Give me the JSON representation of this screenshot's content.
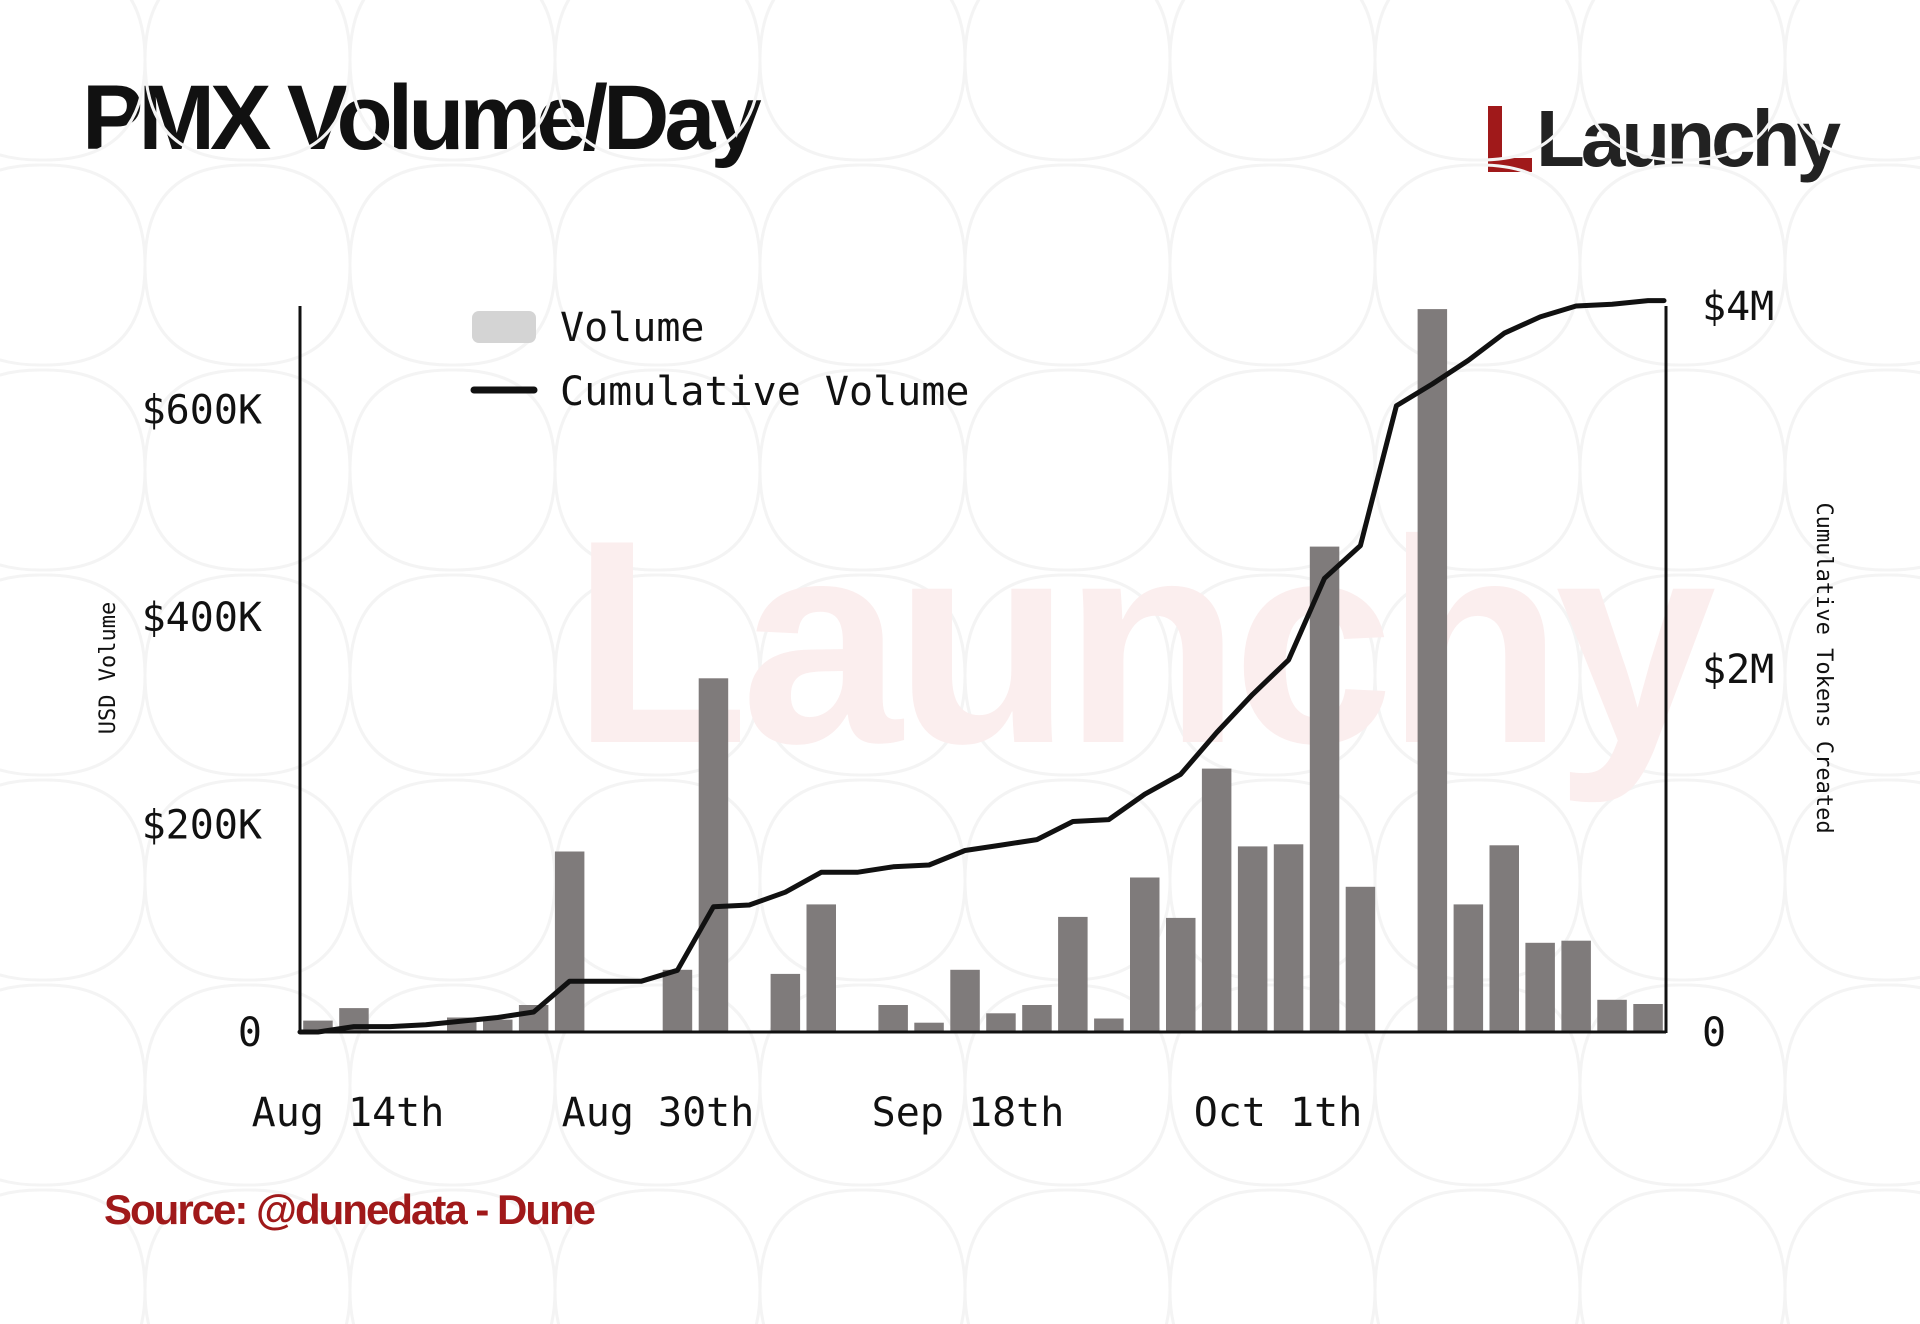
{
  "header": {
    "title": "PMX Volume/Day",
    "logo_text": "Launchy"
  },
  "source": "Source: @dunedata - Dune",
  "watermark": "Launchy",
  "colors": {
    "brand_red": "#a0191a",
    "bar": "#7f7b7b",
    "line": "#111111"
  },
  "chart_data": {
    "type": "bar",
    "x_tick_labels": [
      "Aug 14th",
      "Aug 30th",
      "Sep 18th",
      "Oct 1th"
    ],
    "ylabel": "USD Volume",
    "y2label": "Cumulative Tokens Created",
    "y_ticks": [
      "0",
      "$200K",
      "$400K",
      "$600K"
    ],
    "y2_ticks": [
      "0",
      "$2M",
      "$4M"
    ],
    "ylim": [
      0,
      700000
    ],
    "y2lim": [
      0,
      4000000
    ],
    "grid": false,
    "legend_position": "top-left",
    "series": [
      {
        "name": "Volume",
        "kind": "bar",
        "values": [
          11000,
          23000,
          0,
          0,
          14000,
          12000,
          26000,
          174000,
          0,
          0,
          60000,
          341000,
          0,
          56000,
          123000,
          0,
          26000,
          9000,
          60000,
          18000,
          26000,
          111000,
          13000,
          149000,
          110000,
          254000,
          179000,
          181000,
          468000,
          140000,
          0,
          697000,
          123000,
          180000,
          86000,
          88000,
          31000,
          27000
        ]
      },
      {
        "name": "Cumulative Volume",
        "kind": "line",
        "values": [
          0,
          30000,
          30000,
          40000,
          60000,
          80000,
          110000,
          280000,
          280000,
          280000,
          340000,
          690000,
          700000,
          770000,
          880000,
          880000,
          910000,
          920000,
          1000000,
          1030000,
          1060000,
          1160000,
          1170000,
          1310000,
          1420000,
          1650000,
          1860000,
          2050000,
          2500000,
          2680000,
          3450000,
          3570000,
          3700000,
          3850000,
          3940000,
          4000000,
          4010000,
          4030000
        ]
      }
    ]
  }
}
